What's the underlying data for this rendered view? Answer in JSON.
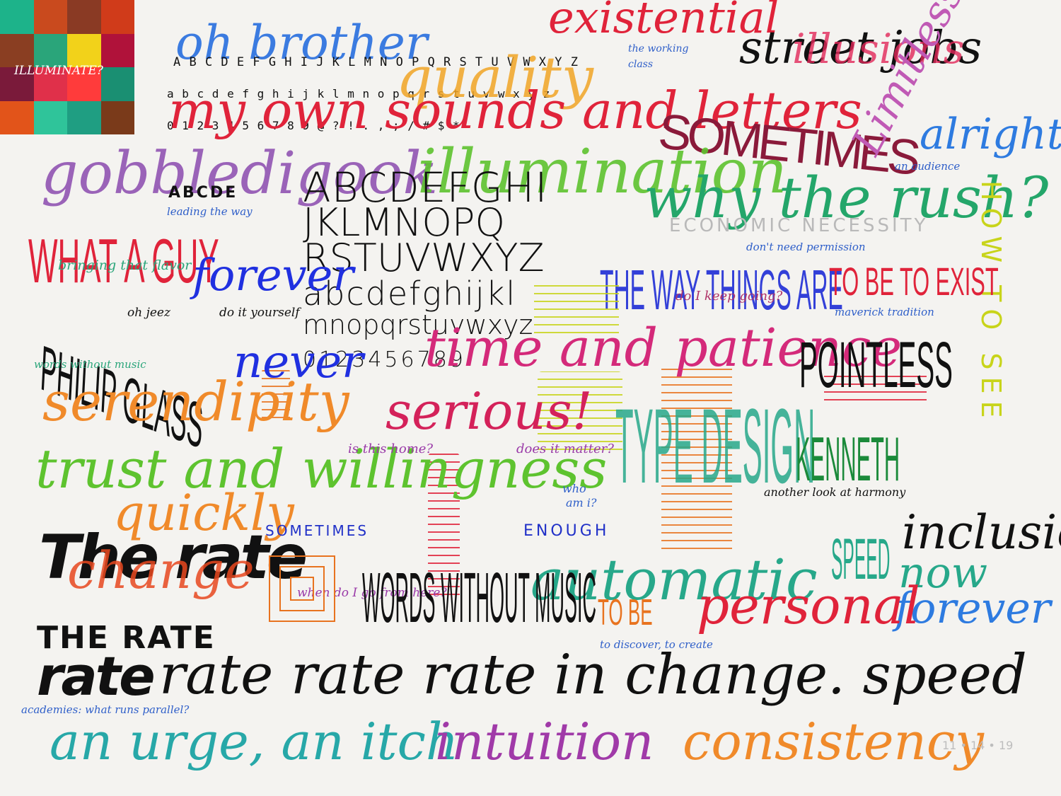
{
  "palette": {
    "colors": [
      "#1db38a",
      "#c94a1e",
      "#8a3a24",
      "#d03b1a",
      "#8a3e22",
      "#2aa57a",
      "#f2d21a",
      "#b0123a",
      "#7a1a3a",
      "#e0304a",
      "#ff3b3b",
      "#1a8f72",
      "#e2541a",
      "#2fc49a",
      "#1f9e82",
      "#7a3a1a"
    ],
    "label": "ILLUMINATE?"
  },
  "words": {
    "oh_brother": "oh brother",
    "upper_alphabet": "A B C D E F G H I J K L M N O P Q R S T U V W X Y Z",
    "lower_alphabet": "a b c d e f g h i j k l m n o p q r s t u v w x y z",
    "numbers_symbols": "0 1 2 3 4 5 6 7 8 9  @ ? ! . , ; / # $ *",
    "quality": "quality",
    "existential": "existential",
    "the_working": "the working",
    "class": "class",
    "street_jobs": "street jobs",
    "illusions": "illusions",
    "my_own": "my own sounds and letters",
    "sometimes_big": "SOMETIMES",
    "limitless": "Limitless",
    "alright": "alright",
    "an_audience": "an audience",
    "gobbledigook": "gobbledigook",
    "abcde": "ABCDE",
    "leading": "leading the way",
    "big_upper_1": "ABCDEFGHI",
    "big_upper_2": "JKLMNOPQ",
    "big_upper_3": "RSTUVWXYZ",
    "big_lower_1": "abcdefghijkl",
    "big_lower_2": "mnopqrstuvwxyz",
    "big_nums": "0123456789",
    "illumination": "illumination",
    "why_rush": "why the rush?",
    "economic": "ECONOMIC NECESSITY",
    "dont_need": "don't need permission",
    "how_to_see": "HOW TO SEE",
    "what_a_guy": "WHAT A GUY",
    "bringing": "bringing that flavor",
    "forever_blue": "forever",
    "oh_jeez": "oh jeez",
    "do_it": "do it yourself",
    "way_things": "THE WAY THINGS ARE",
    "do_keep": "do I keep going?",
    "to_be_exist": "TO BE TO EXIST",
    "maverick": "maverick tradition",
    "philip_glass": "PHILIP GLASS",
    "words_without": "words without music",
    "never": "never",
    "time_patience": "time and patience",
    "pointless": "POINTLESS",
    "serendipity": "serendipity",
    "serious": "serious!",
    "type_design": "TYPE DESIGN",
    "kenneth": "KENNETH",
    "trust": "trust and willingness",
    "is_this_home": "is this home?",
    "does_matter": "does it matter?",
    "who_am_i_1": "who",
    "who_am_i_2": "am i?",
    "another_look": "another look at harmony",
    "quickly": "quickly",
    "sometimes_blue": "SOMETIMES",
    "enough": "ENOUGH",
    "the_rate": "The rate",
    "change": "change",
    "inclusion": "inclusio",
    "now": "now",
    "forever_right": "forever",
    "automatic": "automatic",
    "personal": "personal",
    "speed_v": "SPEED",
    "when_do": "when do I go from here?",
    "words_without_music": "WORDS WITHOUT MUSIC",
    "to_be": "TO BE",
    "to_discover": "to discover, to create",
    "the_rate_caps": "THE RATE",
    "rate_line_bold": "rate",
    "rate_line": "rate rate rate in change.  speed",
    "academies": "academies: what runs parallel?",
    "an_urge": "an urge, an itch",
    "intuition": "intuition",
    "consistency": "consistency",
    "date": "11 • 14 • 19"
  }
}
